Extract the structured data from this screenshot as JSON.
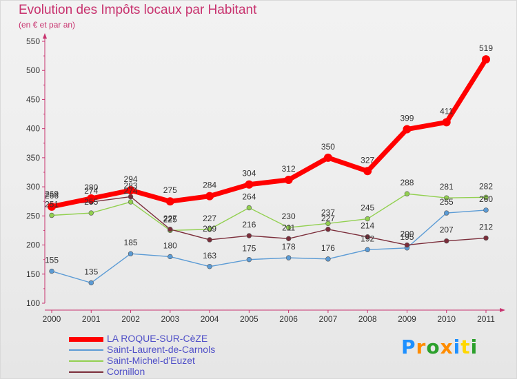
{
  "title": "Evolution des Impôts locaux par Habitant",
  "subtitle": "(en € et par an)",
  "logo": {
    "text": "Proxiti",
    "colors": [
      "#1e90ff",
      "#ff8c00",
      "#2ca02c",
      "#ff8c00",
      "#1e90ff",
      "#ffd700",
      "#2ca02c"
    ]
  },
  "chart_data": {
    "type": "line",
    "x": [
      "2000",
      "2001",
      "2002",
      "2003",
      "2004",
      "2005",
      "2006",
      "2007",
      "2008",
      "2009",
      "2010",
      "2011"
    ],
    "ylim": [
      100,
      550
    ],
    "yticks": [
      100,
      150,
      200,
      250,
      300,
      350,
      400,
      450,
      500,
      550
    ],
    "grid": false,
    "legend_position": "bottom-left",
    "series": [
      {
        "name": "LA ROQUE-SUR-CèZE",
        "color": "#ff0000",
        "values": [
          266,
          280,
          294,
          275,
          284,
          304,
          312,
          350,
          327,
          399,
          411,
          519
        ]
      },
      {
        "name": "Saint-Laurent-de-Carnols",
        "color": "#5b9bd5",
        "values": [
          155,
          135,
          185,
          180,
          163,
          175,
          178,
          176,
          192,
          195,
          255,
          260
        ]
      },
      {
        "name": "Saint-Michel-d'Euzet",
        "color": "#92d050",
        "values": [
          251,
          255,
          274,
          225,
          227,
          264,
          230,
          237,
          245,
          288,
          281,
          282
        ]
      },
      {
        "name": "Cornillon",
        "color": "#7b2d3a",
        "values": [
          269,
          274,
          283,
          227,
          209,
          216,
          211,
          227,
          214,
          200,
          207,
          212
        ]
      }
    ]
  }
}
